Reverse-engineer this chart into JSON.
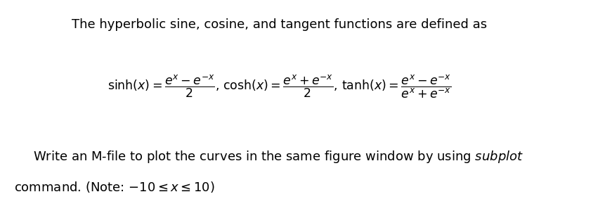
{
  "background_color": "#ffffff",
  "line1": "The hyperbolic sine, cosine, and tangent functions are defined as",
  "line3_normal": "Write an M-file to plot the curves in the same figure window by using ",
  "line3_italic": "subplot",
  "line4": "command. (Note: −10≤ x 10)",
  "font_size_text": 13,
  "font_size_formula": 12.5
}
